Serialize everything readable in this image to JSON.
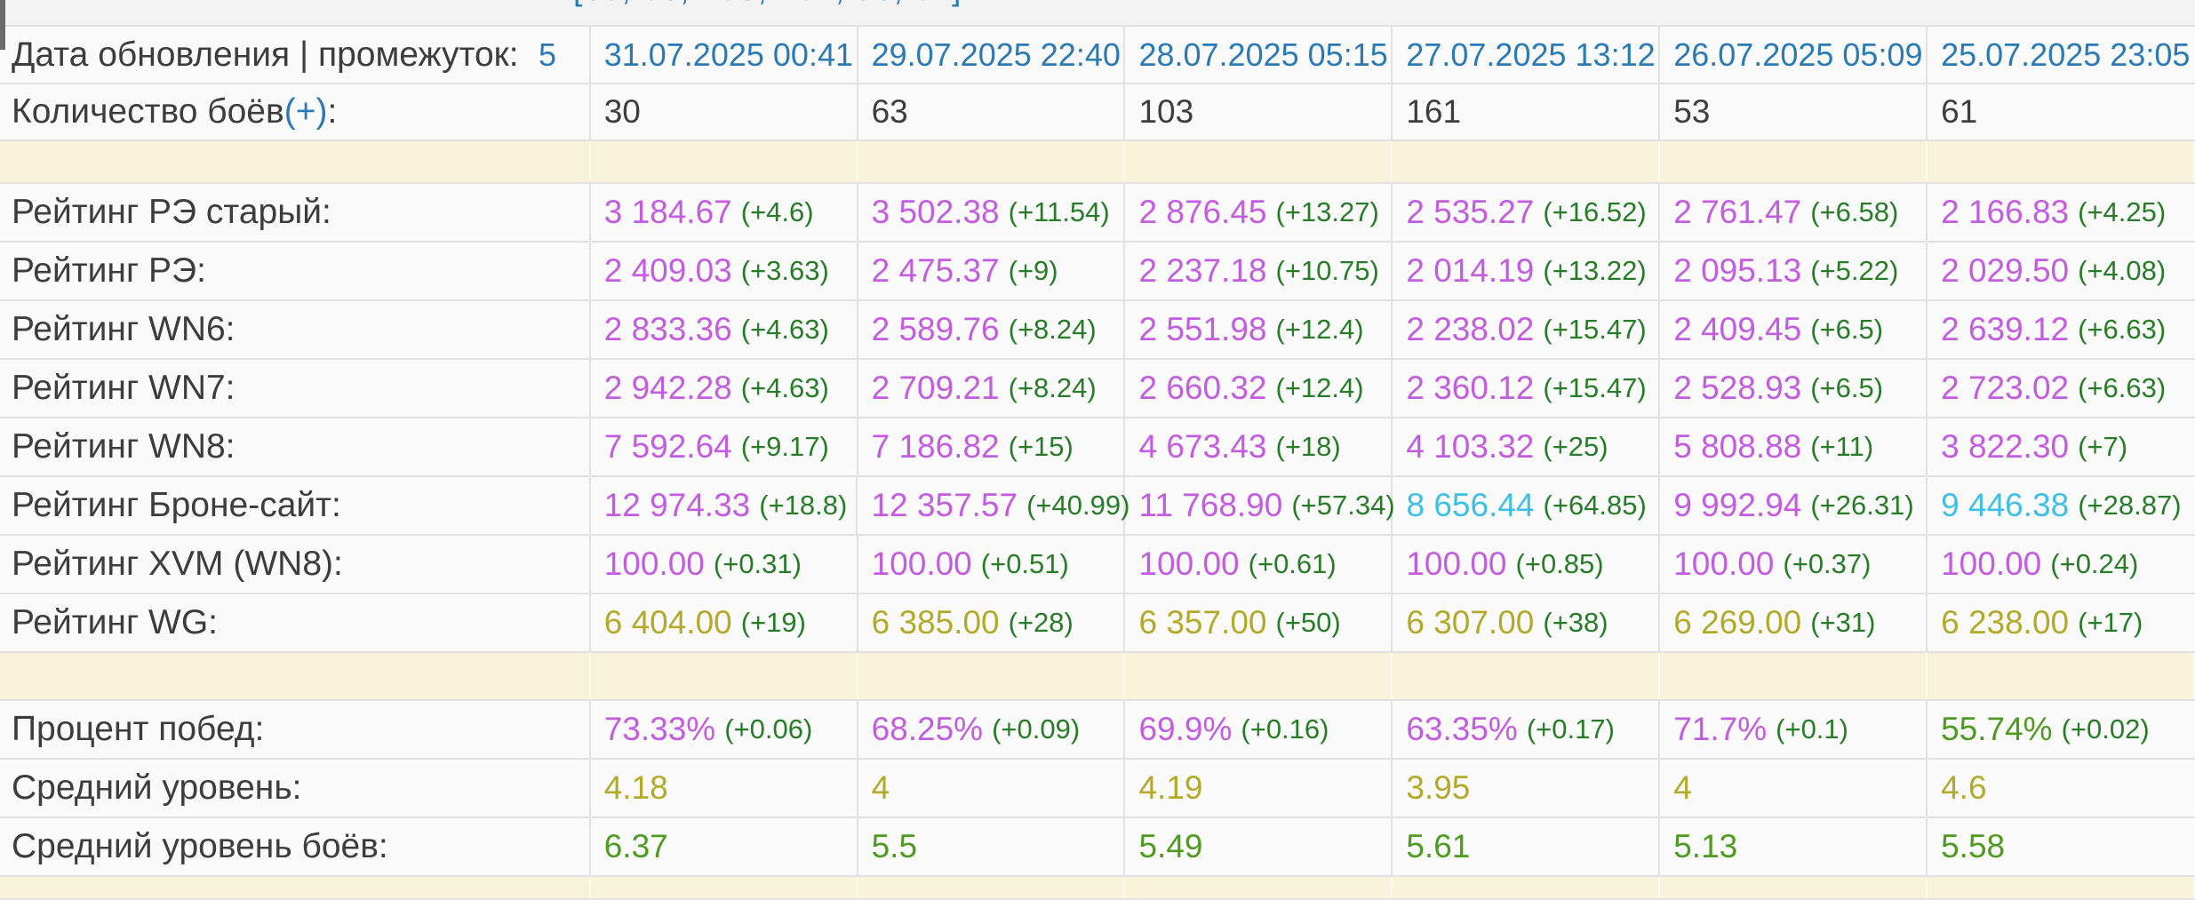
{
  "colors": {
    "purple": "#c45ce0",
    "green": "#4d9b1f",
    "delta": "#277d27",
    "olive": "#b2aa28",
    "cyan": "#3ebfe6",
    "blue": "#2a7ab5",
    "dark": "#3d3d3d",
    "band": "#faf3dc",
    "border": "#e2e2e2",
    "row_bg": "#fafafa"
  },
  "table": {
    "rows": [
      {
        "kind": "fragment",
        "text": "[30, 63, 103, 161, 53, 61]"
      },
      {
        "kind": "dates",
        "label": "Дата обновления | промежуток:",
        "sliver_clipped": "5",
        "values": [
          "31.07.2025 00:41",
          "29.07.2025 22:40",
          "28.07.2025 05:15",
          "27.07.2025 13:12",
          "26.07.2025 05:09",
          "25.07.2025 23:05"
        ]
      },
      {
        "kind": "battles",
        "label_prefix": "Количество боёв ",
        "label_link": "(+)",
        "label_suffix": ":",
        "values": [
          "30",
          "63",
          "103",
          "161",
          "53",
          "61"
        ]
      },
      {
        "kind": "band",
        "variant": "top"
      },
      {
        "kind": "rated",
        "label": "Рейтинг РЭ старый:",
        "cells": [
          {
            "v": "3 184.67",
            "d": "(+4.6)",
            "c": "purple"
          },
          {
            "v": "3 502.38",
            "d": "(+11.54)",
            "c": "purple"
          },
          {
            "v": "2 876.45",
            "d": "(+13.27)",
            "c": "purple"
          },
          {
            "v": "2 535.27",
            "d": "(+16.52)",
            "c": "purple"
          },
          {
            "v": "2 761.47",
            "d": "(+6.58)",
            "c": "purple"
          },
          {
            "v": "2 166.83",
            "d": "(+4.25)",
            "c": "purple"
          }
        ]
      },
      {
        "kind": "rated",
        "label": "Рейтинг РЭ:",
        "cells": [
          {
            "v": "2 409.03",
            "d": "(+3.63)",
            "c": "purple"
          },
          {
            "v": "2 475.37",
            "d": "(+9)",
            "c": "purple"
          },
          {
            "v": "2 237.18",
            "d": "(+10.75)",
            "c": "purple"
          },
          {
            "v": "2 014.19",
            "d": "(+13.22)",
            "c": "purple"
          },
          {
            "v": "2 095.13",
            "d": "(+5.22)",
            "c": "purple"
          },
          {
            "v": "2 029.50",
            "d": "(+4.08)",
            "c": "purple"
          }
        ]
      },
      {
        "kind": "rated",
        "label": "Рейтинг WN6:",
        "cells": [
          {
            "v": "2 833.36",
            "d": "(+4.63)",
            "c": "purple"
          },
          {
            "v": "2 589.76",
            "d": "(+8.24)",
            "c": "purple"
          },
          {
            "v": "2 551.98",
            "d": "(+12.4)",
            "c": "purple"
          },
          {
            "v": "2 238.02",
            "d": "(+15.47)",
            "c": "purple"
          },
          {
            "v": "2 409.45",
            "d": "(+6.5)",
            "c": "purple"
          },
          {
            "v": "2 639.12",
            "d": "(+6.63)",
            "c": "purple"
          }
        ]
      },
      {
        "kind": "rated",
        "label": "Рейтинг WN7:",
        "cells": [
          {
            "v": "2 942.28",
            "d": "(+4.63)",
            "c": "purple"
          },
          {
            "v": "2 709.21",
            "d": "(+8.24)",
            "c": "purple"
          },
          {
            "v": "2 660.32",
            "d": "(+12.4)",
            "c": "purple"
          },
          {
            "v": "2 360.12",
            "d": "(+15.47)",
            "c": "purple"
          },
          {
            "v": "2 528.93",
            "d": "(+6.5)",
            "c": "purple"
          },
          {
            "v": "2 723.02",
            "d": "(+6.63)",
            "c": "purple"
          }
        ]
      },
      {
        "kind": "rated",
        "label": "Рейтинг WN8:",
        "cells": [
          {
            "v": "7 592.64",
            "d": "(+9.17)",
            "c": "purple"
          },
          {
            "v": "7 186.82",
            "d": "(+15)",
            "c": "purple"
          },
          {
            "v": "4 673.43",
            "d": "(+18)",
            "c": "purple"
          },
          {
            "v": "4 103.32",
            "d": "(+25)",
            "c": "purple"
          },
          {
            "v": "5 808.88",
            "d": "(+11)",
            "c": "purple"
          },
          {
            "v": "3 822.30",
            "d": "(+7)",
            "c": "purple"
          }
        ]
      },
      {
        "kind": "rated",
        "label": "Рейтинг Броне-сайт:",
        "cells": [
          {
            "v": "12 974.33",
            "d": "(+18.8)",
            "c": "purple"
          },
          {
            "v": "12 357.57",
            "d": "(+40.99)",
            "c": "purple"
          },
          {
            "v": "11 768.90",
            "d": "(+57.34)",
            "c": "purple"
          },
          {
            "v": "8 656.44",
            "d": "(+64.85)",
            "c": "cyan"
          },
          {
            "v": "9 992.94",
            "d": "(+26.31)",
            "c": "purple"
          },
          {
            "v": "9 446.38",
            "d": "(+28.87)",
            "c": "cyan"
          }
        ]
      },
      {
        "kind": "rated",
        "label": "Рейтинг XVM (WN8):",
        "cells": [
          {
            "v": "100.00",
            "d": "(+0.31)",
            "c": "purple"
          },
          {
            "v": "100.00",
            "d": "(+0.51)",
            "c": "purple"
          },
          {
            "v": "100.00",
            "d": "(+0.61)",
            "c": "purple"
          },
          {
            "v": "100.00",
            "d": "(+0.85)",
            "c": "purple"
          },
          {
            "v": "100.00",
            "d": "(+0.37)",
            "c": "purple"
          },
          {
            "v": "100.00",
            "d": "(+0.24)",
            "c": "purple"
          }
        ]
      },
      {
        "kind": "rated",
        "label": "Рейтинг WG:",
        "cells": [
          {
            "v": "6 404.00",
            "d": "(+19)",
            "c": "olive"
          },
          {
            "v": "6 385.00",
            "d": "(+28)",
            "c": "olive"
          },
          {
            "v": "6 357.00",
            "d": "(+50)",
            "c": "olive"
          },
          {
            "v": "6 307.00",
            "d": "(+38)",
            "c": "olive"
          },
          {
            "v": "6 269.00",
            "d": "(+31)",
            "c": "olive"
          },
          {
            "v": "6 238.00",
            "d": "(+17)",
            "c": "olive"
          }
        ]
      },
      {
        "kind": "band",
        "variant": "mid"
      },
      {
        "kind": "rated",
        "label": "Процент побед:",
        "cells": [
          {
            "v": "73.33%",
            "d": "(+0.06)",
            "c": "purple"
          },
          {
            "v": "68.25%",
            "d": "(+0.09)",
            "c": "purple"
          },
          {
            "v": "69.9%",
            "d": "(+0.16)",
            "c": "purple"
          },
          {
            "v": "63.35%",
            "d": "(+0.17)",
            "c": "purple"
          },
          {
            "v": "71.7%",
            "d": "(+0.1)",
            "c": "purple"
          },
          {
            "v": "55.74%",
            "d": "(+0.02)",
            "c": "green"
          }
        ]
      },
      {
        "kind": "rated",
        "label": "Средний уровень:",
        "cells": [
          {
            "v": "4.18",
            "c": "olive"
          },
          {
            "v": "4",
            "c": "olive"
          },
          {
            "v": "4.19",
            "c": "olive"
          },
          {
            "v": "3.95",
            "c": "olive"
          },
          {
            "v": "4",
            "c": "olive"
          },
          {
            "v": "4.6",
            "c": "olive"
          }
        ]
      },
      {
        "kind": "rated",
        "label": "Средний уровень боёв:",
        "cells": [
          {
            "v": "6.37",
            "c": "green"
          },
          {
            "v": "5.5",
            "c": "green"
          },
          {
            "v": "5.49",
            "c": "green"
          },
          {
            "v": "5.61",
            "c": "green"
          },
          {
            "v": "5.13",
            "c": "green"
          },
          {
            "v": "5.58",
            "c": "green"
          }
        ]
      },
      {
        "kind": "band",
        "variant": "bottom"
      }
    ]
  }
}
